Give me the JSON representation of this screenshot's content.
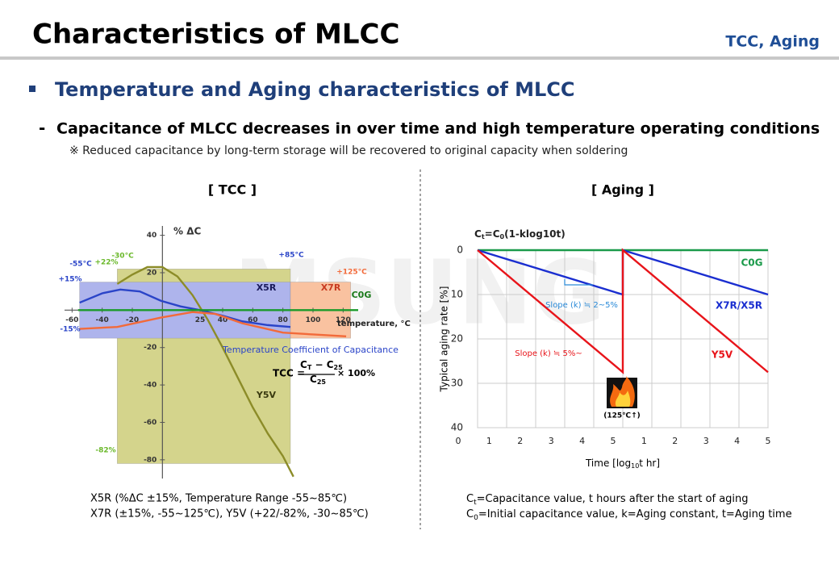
{
  "header": {
    "title": "Characteristics of MLCC",
    "tag": "TCC, Aging"
  },
  "section": "Temperature and Aging characteristics of MLCC",
  "bullet": "Capacitance of MLCC decreases in over time and high temperature operating conditions",
  "note": "※ Reduced capacitance by long-term storage will be recovered to original capacity when soldering",
  "watermark": "MSUNG",
  "chart_data": [
    {
      "type": "line",
      "title": "[ TCC ]",
      "ylabel": "% ΔC",
      "xlabel": "temperature, °C",
      "xlim": [
        -65,
        130
      ],
      "ylim": [
        -90,
        45
      ],
      "xticks": [
        -60,
        -40,
        -20,
        25,
        40,
        60,
        80,
        100,
        120
      ],
      "yticks": [
        40,
        20,
        -20,
        -40,
        -60,
        -80
      ],
      "regions": [
        {
          "xrange": [
            -30,
            85
          ],
          "yrange": [
            -82,
            22
          ],
          "color": "#d4d48c"
        },
        {
          "xrange": [
            -55,
            85
          ],
          "yrange": [
            -15,
            15
          ],
          "color": "#aeb4ec"
        },
        {
          "xrange": [
            85,
            125
          ],
          "yrange": [
            -15,
            15
          ],
          "color": "#f9c2a0"
        }
      ],
      "series": [
        {
          "name": "Y5V",
          "color": "#8c8c28",
          "x": [
            -30,
            -20,
            -10,
            0,
            10,
            20,
            30,
            40,
            50,
            60,
            70,
            80,
            87
          ],
          "values": [
            14,
            19,
            23,
            23,
            18,
            8,
            -5,
            -20,
            -36,
            -52,
            -66,
            -78,
            -89
          ]
        },
        {
          "name": "X5R",
          "color": "#2a44c8",
          "x": [
            -55,
            -40,
            -28,
            -15,
            -1,
            12,
            25,
            40,
            53,
            70,
            85
          ],
          "values": [
            4,
            9,
            11,
            10,
            5,
            2,
            0,
            -3,
            -6,
            -8,
            -9
          ]
        },
        {
          "name": "X7R",
          "color": "#f26a3a",
          "x": [
            -55,
            -30,
            -1,
            20,
            35,
            53,
            80,
            100,
            122
          ],
          "values": [
            -10,
            -9,
            -4,
            -1,
            -2,
            -7,
            -12,
            -13,
            -14
          ]
        },
        {
          "name": "C0G",
          "color": "#1a9a2a",
          "x": [
            -56,
            130
          ],
          "values": [
            0,
            0
          ]
        }
      ],
      "annotations": [
        "-55°C",
        "+22%",
        "-30°C",
        "+85°C",
        "+125°C",
        "+15%",
        "-15%",
        "-82%",
        "Temperature Coefficient of Capacitance"
      ],
      "formula": {
        "lhs": "TCC =",
        "num": [
          "C",
          "T",
          " − C",
          "25"
        ],
        "den": [
          "C",
          "25"
        ],
        "tail": "× 100%"
      }
    },
    {
      "type": "line",
      "title": "[ Aging ]",
      "formula": [
        "C",
        "t",
        "=C",
        "0",
        "(1-klog10t)"
      ],
      "ylabel": "Typical aging rate [%]",
      "xlabel": [
        "Time [log",
        "10",
        "t hr]"
      ],
      "xlim": [
        0,
        10
      ],
      "ylim": [
        0,
        40
      ],
      "y_inverted": true,
      "grid": true,
      "xticks": [
        0,
        1,
        2,
        3,
        4,
        5,
        {
          "value": 6,
          "label": "1"
        },
        {
          "value": 7,
          "label": "2"
        },
        {
          "value": 8,
          "label": "3"
        },
        {
          "value": 9,
          "label": "4"
        },
        {
          "value": 10,
          "label": "5"
        }
      ],
      "yticks": [
        0,
        10,
        20,
        30,
        40
      ],
      "series": [
        {
          "name": "C0G",
          "color": "#1a9a4a",
          "x": [
            0,
            10
          ],
          "values": [
            0,
            0
          ]
        },
        {
          "name": "X7R/X5R",
          "color": "#1a2ed0",
          "x": [
            0,
            5,
            5,
            10
          ],
          "values": [
            0,
            10,
            0,
            10
          ]
        },
        {
          "name": "Y5V",
          "color": "#e8141a",
          "x": [
            0,
            5,
            5,
            10
          ],
          "values": [
            0,
            27.5,
            0,
            27.5
          ]
        }
      ],
      "annotations": [
        "Slope (k) ≒ 2~5%",
        "Slope (k) ≒ 5%~",
        "(125℃↑)"
      ]
    }
  ],
  "tcc_notes": [
    "X5R  (%ΔC ±15%, Temperature Range -55~85℃)",
    "X7R  (±15%, -55~125℃),    Y5V  (+22/-82%, -30~85℃)"
  ],
  "aging_notes": [
    [
      "C",
      "t",
      "=Capacitance value, t hours after the start of aging"
    ],
    [
      "C",
      "0",
      "=Initial capacitance value, k=Aging constant, t=Aging time"
    ]
  ]
}
